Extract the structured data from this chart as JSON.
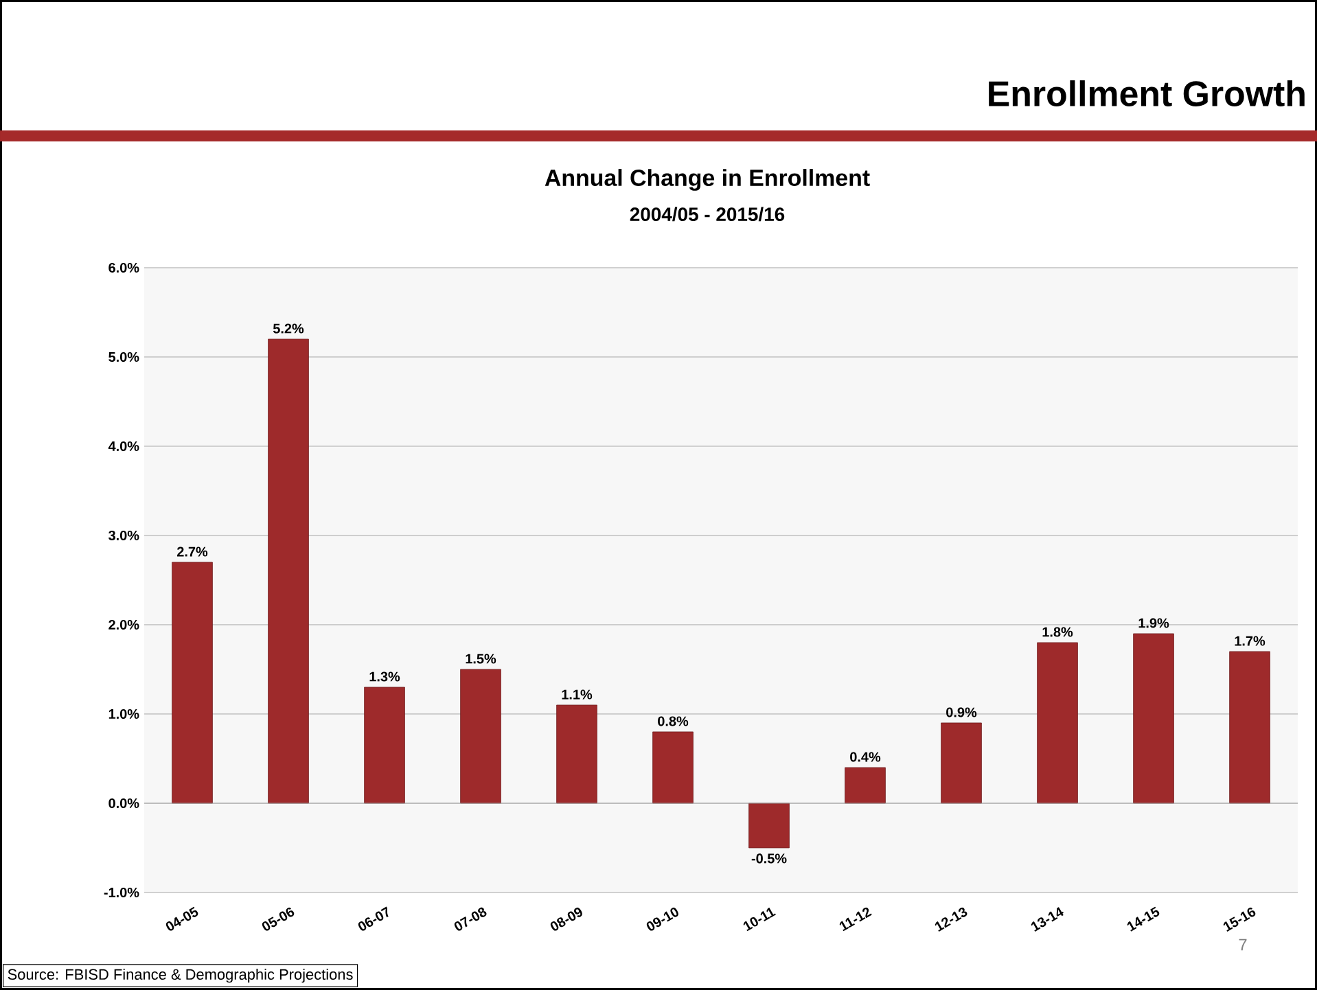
{
  "chart_data": {
    "type": "bar",
    "title": "Annual Change in Enrollment",
    "subtitle": "2004/05 - 2015/16",
    "categories": [
      "04-05",
      "05-06",
      "06-07",
      "07-08",
      "08-09",
      "09-10",
      "10-11",
      "11-12",
      "12-13",
      "13-14",
      "14-15",
      "15-16"
    ],
    "values": [
      2.7,
      5.2,
      1.3,
      1.5,
      1.1,
      0.8,
      -0.5,
      0.4,
      0.9,
      1.8,
      1.9,
      1.7
    ],
    "value_labels": [
      "2.7%",
      "5.2%",
      "1.3%",
      "1.5%",
      "1.1%",
      "0.8%",
      "-0.5%",
      "0.4%",
      "0.9%",
      "1.8%",
      "1.9%",
      "1.7%"
    ],
    "color": "#9e2a2b",
    "ylim": [
      -1,
      6
    ],
    "yticks": [
      {
        "value": -1,
        "label": "-1.0%"
      },
      {
        "value": 0,
        "label": "0.0%"
      },
      {
        "value": 1,
        "label": "1.0%"
      },
      {
        "value": 2,
        "label": "2.0%"
      },
      {
        "value": 3,
        "label": "3.0%"
      },
      {
        "value": 4,
        "label": "4.0%"
      },
      {
        "value": 5,
        "label": "5.0%"
      },
      {
        "value": 6,
        "label": "6.0%"
      }
    ],
    "grid": "y",
    "annotations": [
      "Enrollment Growth",
      "Source: FBISD Finance & Demographic Projections",
      "7"
    ]
  }
}
